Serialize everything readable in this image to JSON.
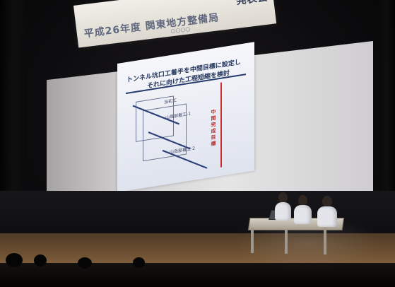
{
  "banner": {
    "title_left": "平成26年度 関東地方整備局",
    "title_right": "発表会",
    "subtitle": "○○○○"
  },
  "slide": {
    "title_line1": "トンネル坑口工着手を中間目標に設定し",
    "title_line2": "それに向けた工程短縮を検討",
    "vertical_label": "中間完成目標",
    "label_a": "当初工",
    "label_b": "山岳部着工-1",
    "label_c": "山岳部着工-2"
  }
}
